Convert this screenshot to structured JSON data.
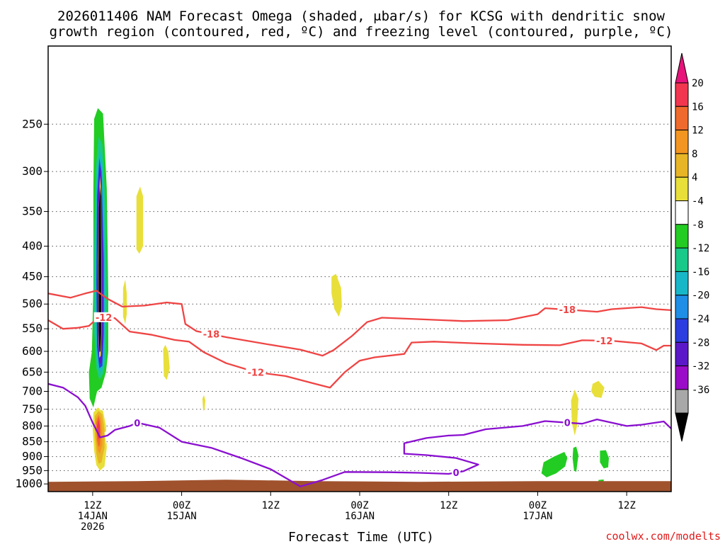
{
  "chart_data": {
    "type": "heatmap",
    "title_lines": [
      "2026011406 NAM Forecast Omega (shaded, μbar/s) for KCSG with dendritic snow",
      "growth region (contoured, red, ºC) and freezing level (contoured, purple, ºC)"
    ],
    "xlabel": "Forecast Time (UTC)",
    "ylabel": "",
    "credit": "coolwx.com/modelts",
    "x_range_hours": [
      0,
      84
    ],
    "y_range_hpa": [
      185,
      1030
    ],
    "y_axis": "pressure (hPa), log scale, increasing downward",
    "y_ticks": [
      "250",
      "300",
      "350",
      "400",
      "450",
      "500",
      "550",
      "600",
      "650",
      "700",
      "750",
      "800",
      "850",
      "900",
      "950",
      "1000"
    ],
    "x_ticks": [
      {
        "h": 6,
        "lines": [
          "12Z",
          "14JAN",
          "2026"
        ]
      },
      {
        "h": 18,
        "lines": [
          "00Z",
          "15JAN"
        ]
      },
      {
        "h": 30,
        "lines": [
          "12Z"
        ]
      },
      {
        "h": 42,
        "lines": [
          "00Z",
          "16JAN"
        ]
      },
      {
        "h": 54,
        "lines": [
          "12Z"
        ]
      },
      {
        "h": 66,
        "lines": [
          "00Z",
          "17JAN"
        ]
      },
      {
        "h": 78,
        "lines": [
          "12Z"
        ]
      }
    ],
    "colorbar": {
      "labels": [
        "20",
        "16",
        "12",
        "8",
        "4",
        "-4",
        "-8",
        "-12",
        "-16",
        "-20",
        "-24",
        "-28",
        "-32",
        "-36"
      ],
      "bin_colors": [
        "#f2364f",
        "#f06a2d",
        "#f39621",
        "#e8b526",
        "#e8df3a",
        "#ffffff",
        "#22cc22",
        "#19c98a",
        "#18b7c8",
        "#1e8ee6",
        "#2c3ee0",
        "#5a18c9",
        "#9a0cc8",
        "#a8a8a8"
      ],
      "over_color": "#e8127b",
      "under_color": "#000000"
    },
    "ground": {
      "pressure_hpa": 1000,
      "color": "#a0522d"
    },
    "contours": [
      {
        "name": "dendritic -12C",
        "color": "#ef4444",
        "label": "-12",
        "label_h": [
          7.5,
          28,
          75
        ],
        "points": [
          [
            0,
            532
          ],
          [
            2,
            550
          ],
          [
            4,
            548
          ],
          [
            5.5,
            544
          ],
          [
            6.5,
            530
          ],
          [
            7.5,
            526
          ],
          [
            9,
            528
          ],
          [
            11,
            556
          ],
          [
            14,
            563
          ],
          [
            17,
            574
          ],
          [
            19,
            578
          ],
          [
            21,
            602
          ],
          [
            24,
            628
          ],
          [
            28,
            650
          ],
          [
            32,
            660
          ],
          [
            36,
            680
          ],
          [
            38,
            690
          ],
          [
            40,
            650
          ],
          [
            42,
            622
          ],
          [
            44,
            614
          ],
          [
            48,
            606
          ],
          [
            49,
            580
          ],
          [
            52,
            578
          ],
          [
            58,
            582
          ],
          [
            64,
            585
          ],
          [
            69,
            586
          ],
          [
            72,
            575
          ],
          [
            76,
            576
          ],
          [
            80,
            582
          ],
          [
            82,
            597
          ],
          [
            83,
            587
          ],
          [
            84,
            587
          ]
        ]
      },
      {
        "name": "dendritic -18C",
        "color": "#ef4444",
        "label": "-18",
        "label_h": [
          22,
          70
        ],
        "points": [
          [
            0,
            480
          ],
          [
            3,
            488
          ],
          [
            5,
            480
          ],
          [
            6.5,
            475
          ],
          [
            8,
            490
          ],
          [
            10,
            505
          ],
          [
            13,
            503
          ],
          [
            16,
            497
          ],
          [
            18,
            500
          ],
          [
            18.5,
            540
          ],
          [
            20,
            555
          ],
          [
            24,
            568
          ],
          [
            30,
            585
          ],
          [
            34,
            596
          ],
          [
            37,
            610
          ],
          [
            38.5,
            597
          ],
          [
            41,
            565
          ],
          [
            43,
            536
          ],
          [
            45,
            527
          ],
          [
            50,
            530
          ],
          [
            56,
            534
          ],
          [
            62,
            532
          ],
          [
            66,
            520
          ],
          [
            67,
            508
          ],
          [
            71,
            512
          ],
          [
            74,
            515
          ],
          [
            76,
            510
          ],
          [
            80,
            506
          ],
          [
            82,
            510
          ],
          [
            84,
            512
          ]
        ]
      },
      {
        "name": "freezing level 0C",
        "color": "#8a0fd0",
        "label": "0",
        "label_h": [
          12,
          55,
          70
        ],
        "points": [
          [
            0,
            680
          ],
          [
            2,
            690
          ],
          [
            4,
            716
          ],
          [
            5,
            740
          ],
          [
            6,
            790
          ],
          [
            7,
            836
          ],
          [
            8,
            830
          ],
          [
            9,
            812
          ],
          [
            11,
            800
          ],
          [
            12,
            790
          ],
          [
            15,
            805
          ],
          [
            18,
            850
          ],
          [
            22,
            870
          ],
          [
            26,
            905
          ],
          [
            30,
            945
          ],
          [
            34,
            1010
          ],
          [
            37,
            985
          ],
          [
            40,
            955
          ],
          [
            46,
            956
          ],
          [
            50,
            958
          ],
          [
            54,
            962
          ],
          [
            56,
            952
          ],
          [
            58,
            928
          ],
          [
            55,
            905
          ],
          [
            51,
            895
          ],
          [
            48,
            890
          ],
          [
            48,
            855
          ],
          [
            51,
            838
          ],
          [
            54,
            830
          ],
          [
            56,
            828
          ],
          [
            59,
            810
          ],
          [
            64,
            800
          ],
          [
            67,
            785
          ],
          [
            72,
            793
          ],
          [
            74,
            780
          ],
          [
            78,
            800
          ],
          [
            80,
            796
          ],
          [
            83,
            786
          ],
          [
            84,
            808
          ]
        ]
      }
    ],
    "shaded_regions": [
      {
        "value_bin": "-8",
        "location": "h 6-8, 235-745 hPa"
      },
      {
        "value_bin": "-16",
        "location": "h 6.5-7.5, 260-660 hPa"
      },
      {
        "value_bin": "-28",
        "location": "h 6.8-7.3, 290-630 hPa"
      },
      {
        "value_bin": "-36",
        "location": "h 6.9-7.2, 310-600 hPa"
      },
      {
        "value_bin": "8",
        "location": "h 6-8, 745-945 hPa"
      },
      {
        "value_bin": "16",
        "location": "h 6.5-7, 760-860 hPa"
      },
      {
        "value_bin": "4",
        "location": "h 12-13, 320-410 hPa"
      },
      {
        "value_bin": "4",
        "location": "h 38.5-39.5, 440-520 hPa"
      },
      {
        "value_bin": "4",
        "location": "h 70.5-71.5, 690-840 hPa"
      },
      {
        "value_bin": "4",
        "location": "h 73-74, 670-720 hPa"
      },
      {
        "value_bin": "-4",
        "location": "h 67-72, 890-980 hPa"
      },
      {
        "value_bin": "-4",
        "location": "h 76, 870-940 hPa"
      }
    ]
  }
}
